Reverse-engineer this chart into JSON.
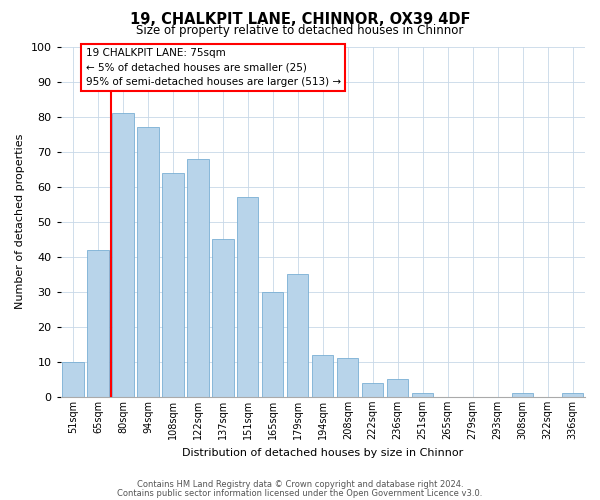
{
  "title": "19, CHALKPIT LANE, CHINNOR, OX39 4DF",
  "subtitle": "Size of property relative to detached houses in Chinnor",
  "xlabel": "Distribution of detached houses by size in Chinnor",
  "ylabel": "Number of detached properties",
  "categories": [
    "51sqm",
    "65sqm",
    "80sqm",
    "94sqm",
    "108sqm",
    "122sqm",
    "137sqm",
    "151sqm",
    "165sqm",
    "179sqm",
    "194sqm",
    "208sqm",
    "222sqm",
    "236sqm",
    "251sqm",
    "265sqm",
    "279sqm",
    "293sqm",
    "308sqm",
    "322sqm",
    "336sqm"
  ],
  "values": [
    10,
    42,
    81,
    77,
    64,
    68,
    45,
    57,
    30,
    35,
    12,
    11,
    4,
    5,
    1,
    0,
    0,
    0,
    1,
    0,
    1
  ],
  "bar_color": "#b8d4ea",
  "bar_edge_color": "#7aafd4",
  "vline_x": 1.5,
  "vline_color": "red",
  "annotation_title": "19 CHALKPIT LANE: 75sqm",
  "annotation_line1": "← 5% of detached houses are smaller (25)",
  "annotation_line2": "95% of semi-detached houses are larger (513) →",
  "annotation_box_color": "white",
  "annotation_box_edge": "red",
  "ylim": [
    0,
    100
  ],
  "yticks": [
    0,
    10,
    20,
    30,
    40,
    50,
    60,
    70,
    80,
    90,
    100
  ],
  "footer1": "Contains HM Land Registry data © Crown copyright and database right 2024.",
  "footer2": "Contains public sector information licensed under the Open Government Licence v3.0."
}
